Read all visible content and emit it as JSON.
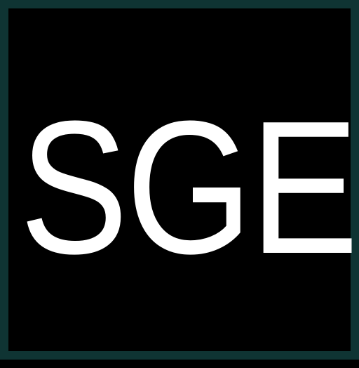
{
  "logo": {
    "text": "SGE",
    "text_color": "#ffffff",
    "background_color": "#000000",
    "border_color": "#0f3433"
  }
}
